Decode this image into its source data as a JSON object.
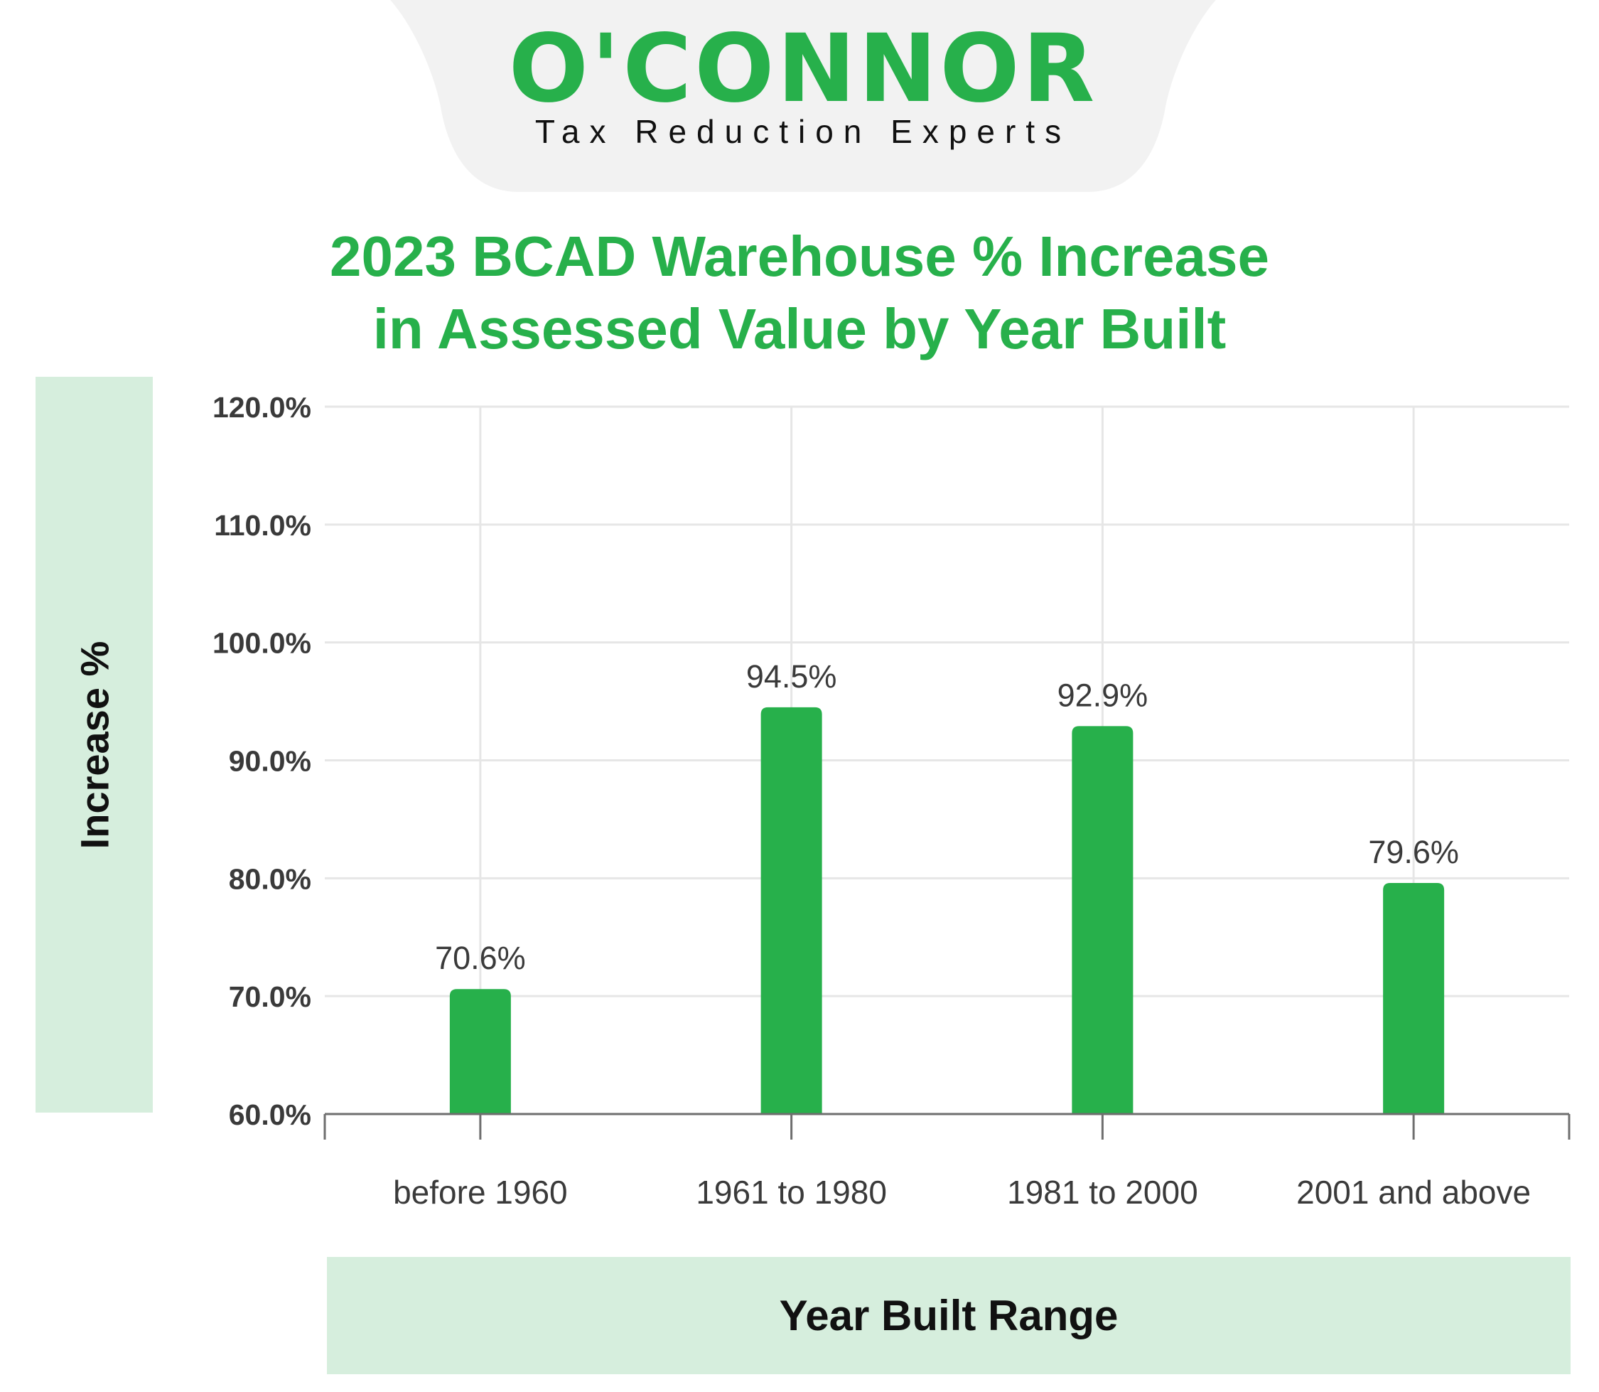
{
  "logo": {
    "wordmark": "O'CONNOR",
    "tagline": "Tax Reduction Experts",
    "brand_color": "#27b04b",
    "tab_color": "#f2f2f2"
  },
  "chart_data": {
    "type": "bar",
    "title_line1": "2023 BCAD Warehouse % Increase",
    "title_line2": "in Assessed Value by Year Built",
    "xlabel": "Year Built Range",
    "ylabel": "Increase %",
    "categories": [
      "before 1960",
      "1961 to 1980",
      "1981 to 2000",
      "2001 and above"
    ],
    "values": [
      70.6,
      94.5,
      92.9,
      79.6
    ],
    "value_labels": [
      "70.6%",
      "94.5%",
      "92.9%",
      "79.6%"
    ],
    "ylim": [
      60,
      120
    ],
    "yticks": [
      60,
      70,
      80,
      90,
      100,
      110,
      120
    ],
    "ytick_labels": [
      "60.0%",
      "70.0%",
      "80.0%",
      "90.0%",
      "100.0%",
      "110.0%",
      "120.0%"
    ],
    "grid": true,
    "bar_color": "#27b04b",
    "label_panel_color": "#d6eedd"
  }
}
